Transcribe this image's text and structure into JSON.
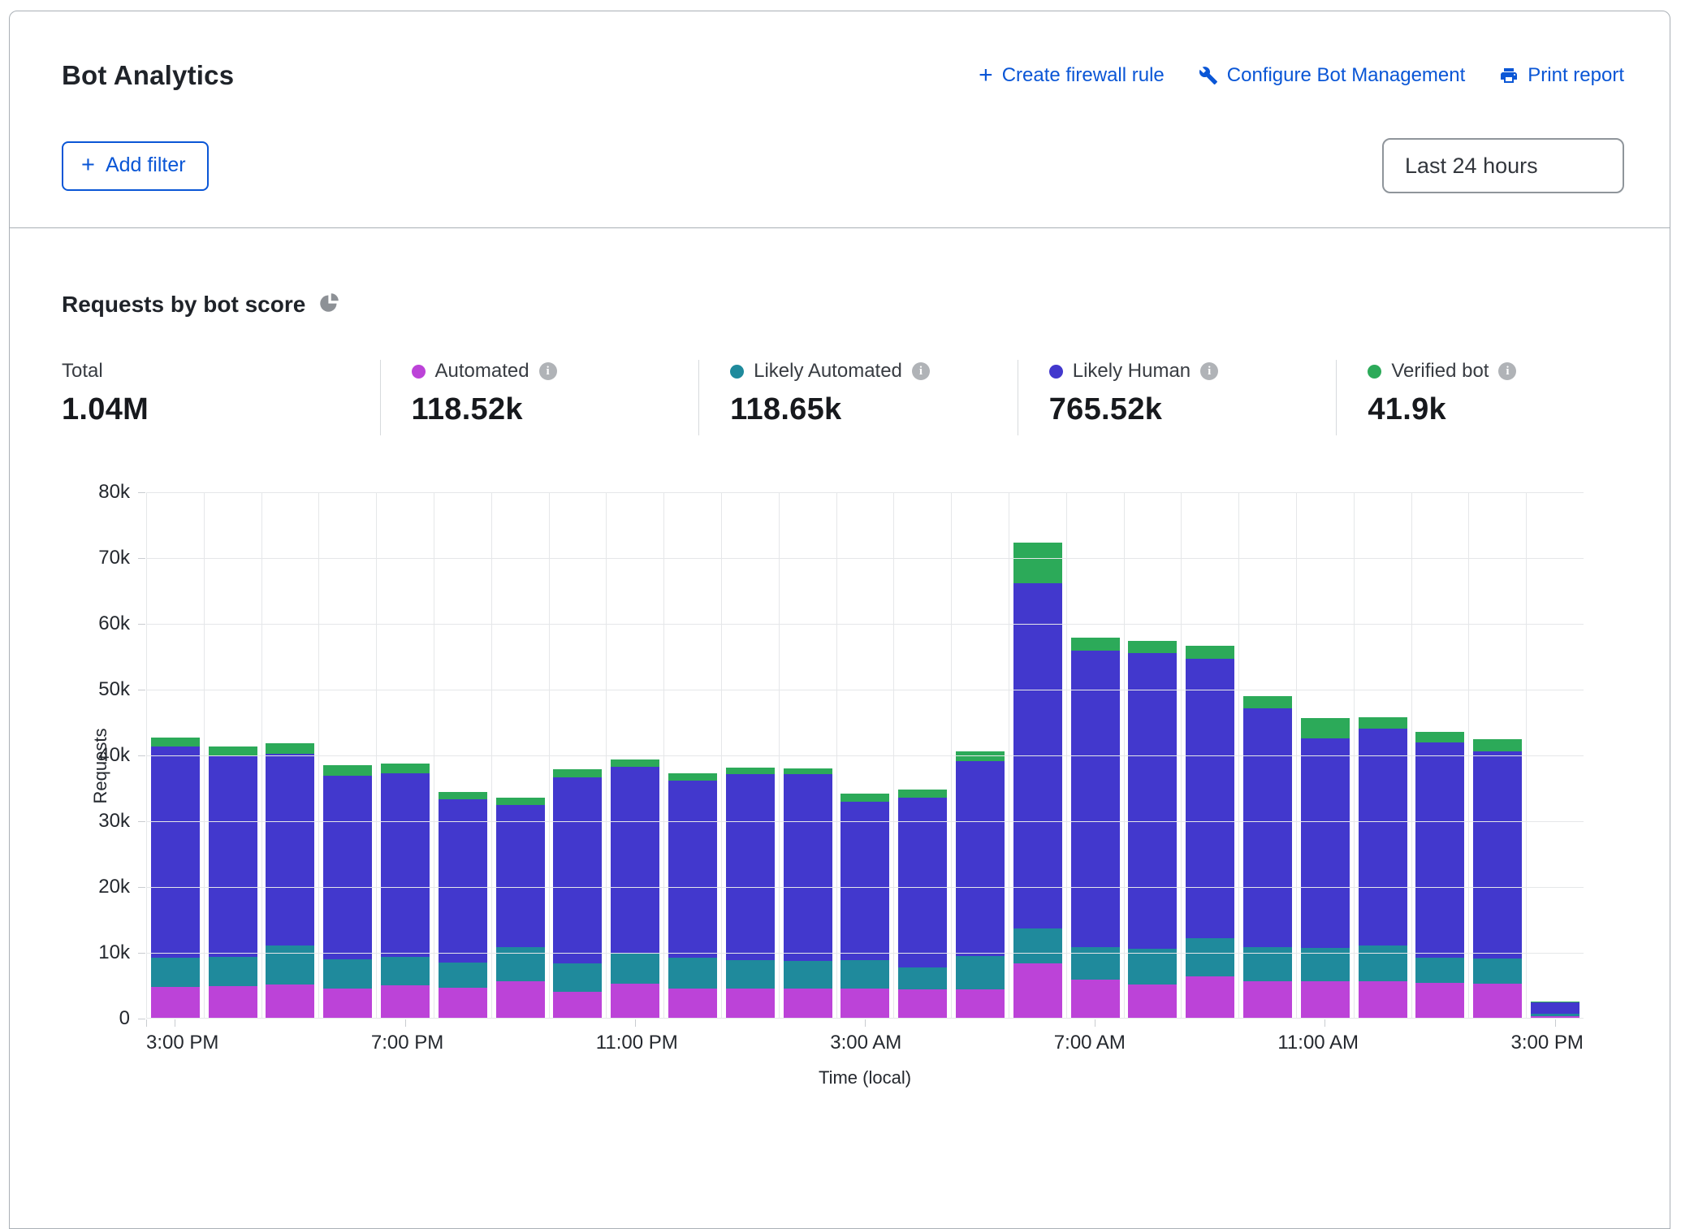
{
  "header": {
    "title": "Bot Analytics",
    "actions": [
      {
        "icon": "plus-icon",
        "label": "Create firewall rule"
      },
      {
        "icon": "wrench-icon",
        "label": "Configure Bot Management"
      },
      {
        "icon": "printer-icon",
        "label": "Print report"
      }
    ],
    "add_filter_label": "Add filter",
    "time_range_value": "Last 24 hours"
  },
  "section": {
    "heading": "Requests by bot score",
    "stats": [
      {
        "label": "Total",
        "value": "1.04M",
        "color": ""
      },
      {
        "label": "Automated",
        "value": "118.52k",
        "color": "#bc43d8"
      },
      {
        "label": "Likely Automated",
        "value": "118.65k",
        "color": "#1f8a9c"
      },
      {
        "label": "Likely Human",
        "value": "765.52k",
        "color": "#4238cd"
      },
      {
        "label": "Verified bot",
        "value": "41.9k",
        "color": "#2caa59"
      }
    ]
  },
  "chart_data": {
    "type": "bar",
    "stacked": true,
    "title": "Requests by bot score",
    "xlabel": "Time (local)",
    "ylabel": "Requests",
    "ylim": [
      0,
      80000
    ],
    "ytick_step": 10000,
    "ytick_labels": [
      "0",
      "10k",
      "20k",
      "30k",
      "40k",
      "50k",
      "60k",
      "70k",
      "80k"
    ],
    "x_tick_interval": 4,
    "grid": true,
    "grid_color": "#e5e7e9",
    "legend_position": "top-stats-row",
    "categories": [
      "3:00 PM",
      "4:00 PM",
      "5:00 PM",
      "6:00 PM",
      "7:00 PM",
      "8:00 PM",
      "9:00 PM",
      "10:00 PM",
      "11:00 PM",
      "12:00 AM",
      "1:00 AM",
      "2:00 AM",
      "3:00 AM",
      "4:00 AM",
      "5:00 AM",
      "6:00 AM",
      "7:00 AM",
      "8:00 AM",
      "9:00 AM",
      "10:00 AM",
      "11:00 AM",
      "12:00 PM",
      "1:00 PM",
      "2:00 PM",
      "3:00 PM"
    ],
    "series": [
      {
        "name": "Automated",
        "color": "#bc43d8",
        "values": [
          4700,
          4800,
          5100,
          4500,
          4900,
          4600,
          5600,
          4000,
          5200,
          4500,
          4400,
          4500,
          4400,
          4300,
          4300,
          8300,
          5800,
          5100,
          6300,
          5600,
          5500,
          5500,
          5300,
          5200,
          200
        ]
      },
      {
        "name": "Likely Automated",
        "color": "#1f8a9c",
        "values": [
          4500,
          4500,
          5900,
          4400,
          4400,
          3800,
          5100,
          4300,
          4500,
          4600,
          4400,
          4100,
          4400,
          3300,
          5100,
          5300,
          5000,
          5400,
          5800,
          5200,
          5100,
          5500,
          3900,
          3800,
          400
        ]
      },
      {
        "name": "Likely Human",
        "color": "#4238cd",
        "values": [
          32100,
          30500,
          29100,
          27900,
          27900,
          24800,
          21600,
          28200,
          28400,
          26900,
          28200,
          28400,
          24000,
          25900,
          29600,
          52400,
          45000,
          44900,
          42500,
          36200,
          31900,
          32900,
          32600,
          31500,
          1800
        ]
      },
      {
        "name": "Verified bot",
        "color": "#2caa59",
        "values": [
          1300,
          1400,
          1600,
          1600,
          1500,
          1100,
          1100,
          1300,
          1200,
          1200,
          1000,
          900,
          1300,
          1200,
          1500,
          6200,
          2000,
          1900,
          1900,
          1900,
          3000,
          1800,
          1700,
          1800,
          100
        ]
      }
    ],
    "bar_totals": [
      42600,
      41200,
      41700,
      38400,
      38700,
      34300,
      33400,
      37800,
      39300,
      37200,
      38000,
      37900,
      34100,
      34700,
      40500,
      72200,
      57800,
      57300,
      56500,
      48900,
      45500,
      45700,
      43500,
      42300,
      2500
    ]
  }
}
